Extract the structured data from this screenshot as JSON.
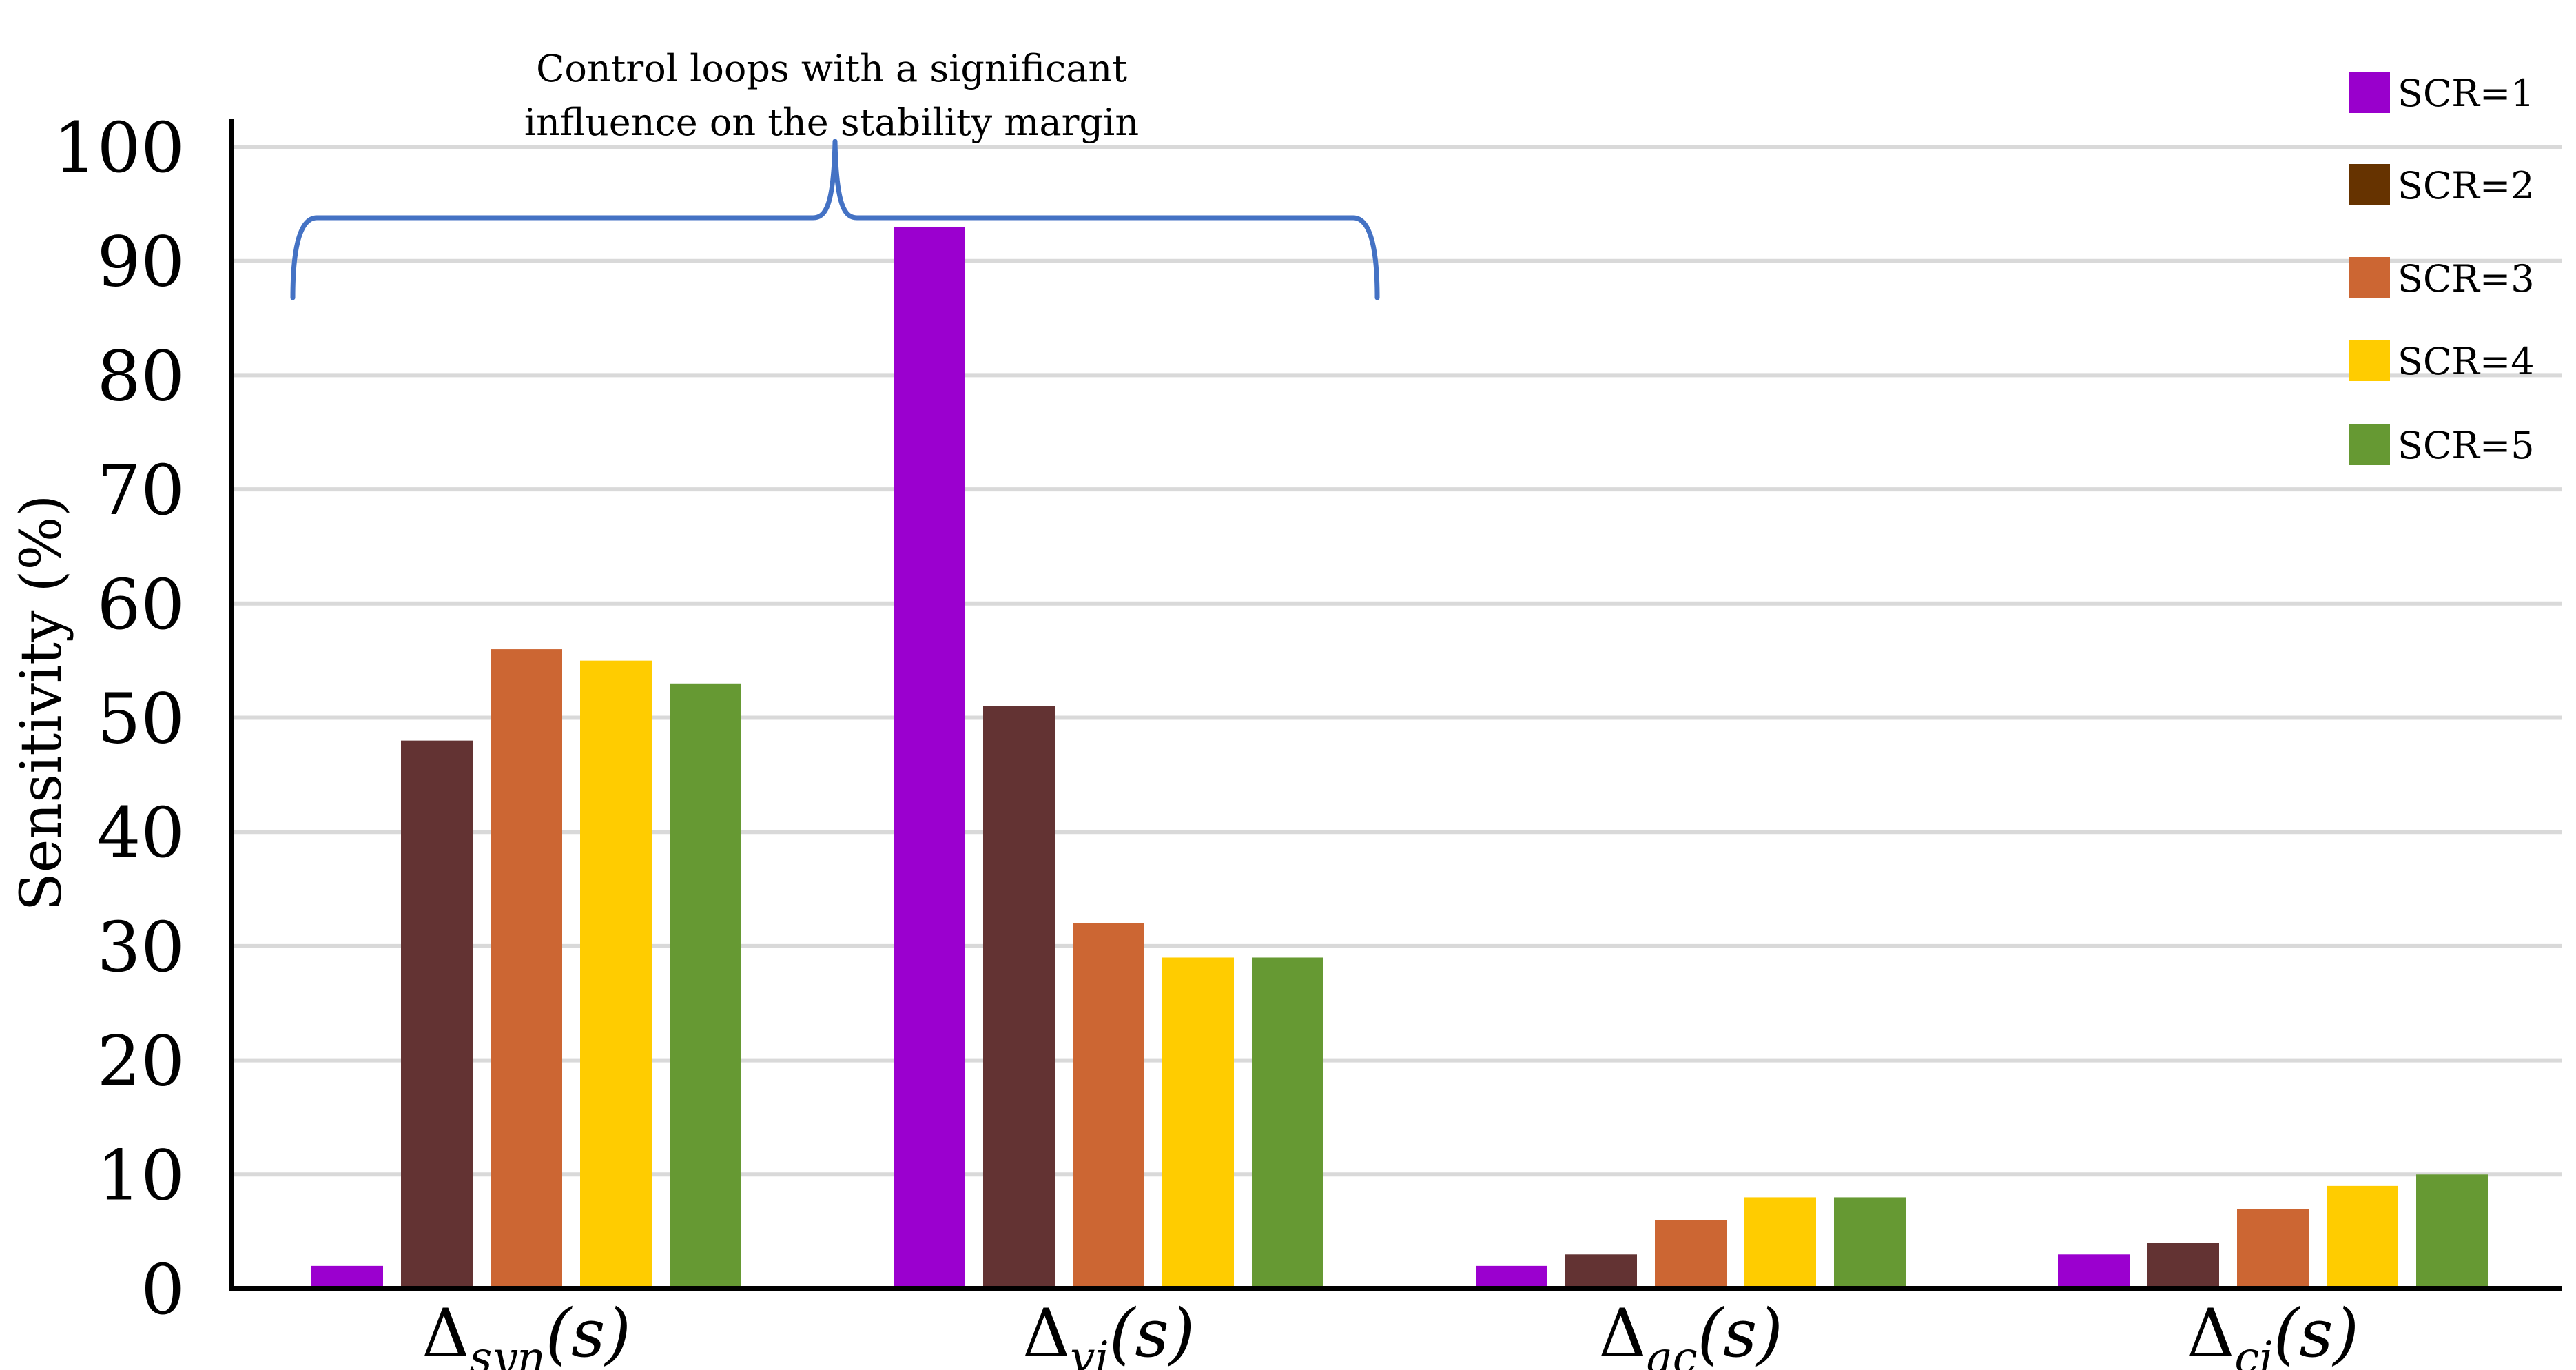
{
  "chart_data": {
    "type": "bar",
    "ylabel": "Sensitivity (%)",
    "xlabel": "",
    "ylim": [
      0,
      100
    ],
    "yticks": [
      0,
      10,
      20,
      30,
      40,
      50,
      60,
      70,
      80,
      90,
      100
    ],
    "grid": true,
    "legend_placement": "top-right",
    "categories": [
      {
        "base": "Δ",
        "sub": "syn",
        "arg": "(s)"
      },
      {
        "base": "Δ",
        "sub": "vi",
        "arg": "(s)"
      },
      {
        "base": "Δ",
        "sub": "ac",
        "arg": "(s)"
      },
      {
        "base": "Δ",
        "sub": "ci",
        "arg": "(s)"
      }
    ],
    "series": [
      {
        "name": "SCR=1",
        "color": "#9b00cf",
        "values": [
          2,
          93,
          2,
          3
        ]
      },
      {
        "name": "SCR=2",
        "color": "#633333",
        "values": [
          48,
          51,
          3,
          4
        ]
      },
      {
        "name": "SCR=3",
        "color": "#cc6633",
        "values": [
          56,
          32,
          6,
          7
        ]
      },
      {
        "name": "SCR=4",
        "color": "#ffcc00",
        "values": [
          55,
          29,
          8,
          9
        ]
      },
      {
        "name": "SCR=5",
        "color": "#669933",
        "values": [
          53,
          29,
          8,
          10
        ]
      }
    ],
    "legend_swatch_colors": [
      "#9900cc",
      "#663300",
      "#cc6633",
      "#ffcc00",
      "#669933"
    ],
    "annotation": {
      "lines": [
        "Control loops with a significant",
        "influence on the stability margin"
      ],
      "brace_color": "#4472c4",
      "spans_categories": [
        0,
        1
      ]
    }
  }
}
